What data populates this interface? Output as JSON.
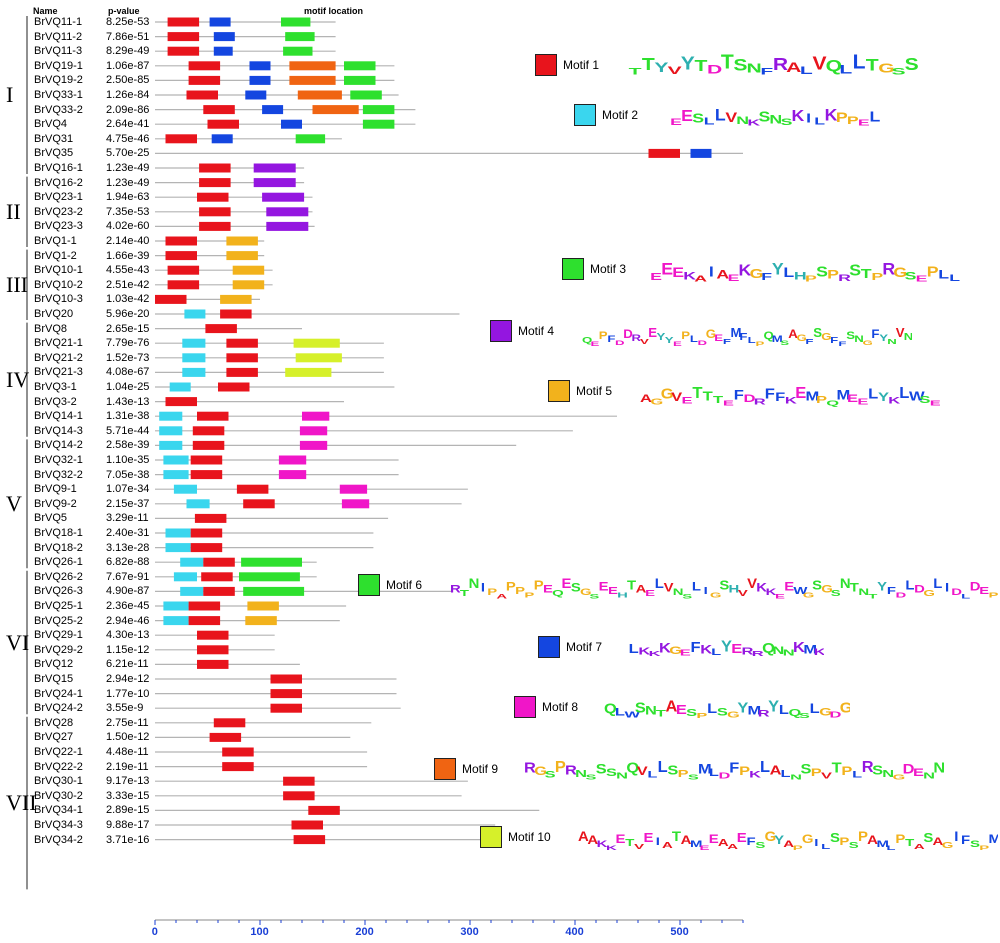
{
  "header": {
    "name": "Name",
    "pvalue": "p-value",
    "location": "motif location"
  },
  "axis": {
    "ticks": [
      0,
      100,
      200,
      300,
      400,
      500
    ],
    "max": 560
  },
  "colors": {
    "1": "#e8141c",
    "2": "#1446e0",
    "3": "#2ee02e",
    "4": "#9416e0",
    "5": "#f2b21c",
    "6": "#2ee02e",
    "7": "#1446e0",
    "8": "#f016c8",
    "9": "#f06412",
    "10": "#d6f02a",
    "c": "#3ad6ee"
  },
  "groups": [
    {
      "label": "I",
      "from": 0,
      "to": 10
    },
    {
      "label": "II",
      "from": 11,
      "to": 15
    },
    {
      "label": "III",
      "from": 16,
      "to": 20
    },
    {
      "label": "IV",
      "from": 21,
      "to": 28
    },
    {
      "label": "V",
      "from": 29,
      "to": 37
    },
    {
      "label": "VI",
      "from": 38,
      "to": 47
    },
    {
      "label": "VII",
      "from": 48,
      "to": 59
    }
  ],
  "genes": [
    {
      "name": "BrVQ11-1",
      "p": "8.25e-53",
      "len": 172,
      "m": [
        [
          1,
          12,
          42
        ],
        [
          2,
          52,
          72
        ],
        [
          6,
          120,
          148
        ]
      ]
    },
    {
      "name": "BrVQ11-2",
      "p": "7.86e-51",
      "len": 172,
      "m": [
        [
          1,
          12,
          42
        ],
        [
          2,
          56,
          76
        ],
        [
          6,
          124,
          152
        ]
      ]
    },
    {
      "name": "BrVQ11-3",
      "p": "8.29e-49",
      "len": 172,
      "m": [
        [
          1,
          12,
          42
        ],
        [
          2,
          56,
          74
        ],
        [
          6,
          122,
          150
        ]
      ]
    },
    {
      "name": "BrVQ19-1",
      "p": "1.06e-87",
      "len": 228,
      "m": [
        [
          1,
          32,
          62
        ],
        [
          2,
          90,
          110
        ],
        [
          9,
          128,
          172
        ],
        [
          6,
          180,
          210
        ]
      ]
    },
    {
      "name": "BrVQ19-2",
      "p": "2.50e-85",
      "len": 228,
      "m": [
        [
          1,
          32,
          62
        ],
        [
          2,
          90,
          110
        ],
        [
          9,
          128,
          172
        ],
        [
          6,
          180,
          210
        ]
      ]
    },
    {
      "name": "BrVQ33-1",
      "p": "1.26e-84",
      "len": 232,
      "m": [
        [
          1,
          30,
          60
        ],
        [
          2,
          86,
          106
        ],
        [
          9,
          136,
          178
        ],
        [
          6,
          186,
          216
        ]
      ]
    },
    {
      "name": "BrVQ33-2",
      "p": "2.09e-86",
      "len": 248,
      "m": [
        [
          1,
          46,
          76
        ],
        [
          2,
          102,
          122
        ],
        [
          9,
          150,
          194
        ],
        [
          6,
          198,
          228
        ]
      ]
    },
    {
      "name": "BrVQ4",
      "p": "2.64e-41",
      "len": 248,
      "m": [
        [
          1,
          50,
          80
        ],
        [
          2,
          120,
          140
        ],
        [
          6,
          198,
          228
        ]
      ]
    },
    {
      "name": "BrVQ31",
      "p": "4.75e-46",
      "len": 178,
      "m": [
        [
          1,
          10,
          40
        ],
        [
          2,
          54,
          74
        ],
        [
          6,
          134,
          162
        ]
      ]
    },
    {
      "name": "BrVQ35",
      "p": "5.70e-25",
      "len": 560,
      "m": [
        [
          1,
          470,
          500
        ],
        [
          2,
          510,
          530
        ]
      ]
    },
    {
      "name": "BrVQ16-1",
      "p": "1.23e-49",
      "len": 142,
      "m": [
        [
          1,
          42,
          72
        ],
        [
          4,
          94,
          134
        ]
      ]
    },
    {
      "name": "BrVQ16-2",
      "p": "1.23e-49",
      "len": 142,
      "m": [
        [
          1,
          42,
          72
        ],
        [
          4,
          94,
          134
        ]
      ]
    },
    {
      "name": "BrVQ23-1",
      "p": "1.94e-63",
      "len": 150,
      "m": [
        [
          1,
          40,
          70
        ],
        [
          4,
          102,
          142
        ]
      ]
    },
    {
      "name": "BrVQ23-2",
      "p": "7.35e-53",
      "len": 150,
      "m": [
        [
          1,
          42,
          72
        ],
        [
          4,
          106,
          146
        ]
      ]
    },
    {
      "name": "BrVQ23-3",
      "p": "4.02e-60",
      "len": 152,
      "m": [
        [
          1,
          42,
          72
        ],
        [
          4,
          106,
          146
        ]
      ]
    },
    {
      "name": "BrVQ1-1",
      "p": "2.14e-40",
      "len": 104,
      "m": [
        [
          1,
          10,
          40
        ],
        [
          5,
          68,
          98
        ]
      ]
    },
    {
      "name": "BrVQ1-2",
      "p": "1.66e-39",
      "len": 104,
      "m": [
        [
          1,
          10,
          40
        ],
        [
          5,
          68,
          98
        ]
      ]
    },
    {
      "name": "BrVQ10-1",
      "p": "4.55e-43",
      "len": 112,
      "m": [
        [
          1,
          12,
          42
        ],
        [
          5,
          74,
          104
        ]
      ]
    },
    {
      "name": "BrVQ10-2",
      "p": "2.51e-42",
      "len": 112,
      "m": [
        [
          1,
          12,
          42
        ],
        [
          5,
          74,
          104
        ]
      ]
    },
    {
      "name": "BrVQ10-3",
      "p": "1.03e-42",
      "len": 100,
      "m": [
        [
          1,
          0,
          30
        ],
        [
          5,
          62,
          92
        ]
      ]
    },
    {
      "name": "BrVQ20",
      "p": "5.96e-20",
      "len": 290,
      "m": [
        [
          "c",
          28,
          48
        ],
        [
          1,
          62,
          92
        ]
      ]
    },
    {
      "name": "BrVQ8",
      "p": "2.65e-15",
      "len": 140,
      "m": [
        [
          1,
          48,
          78
        ]
      ]
    },
    {
      "name": "BrVQ21-1",
      "p": "7.79e-76",
      "len": 218,
      "m": [
        [
          "c",
          26,
          48
        ],
        [
          1,
          68,
          98
        ],
        [
          10,
          132,
          176
        ]
      ]
    },
    {
      "name": "BrVQ21-2",
      "p": "1.52e-73",
      "len": 218,
      "m": [
        [
          "c",
          26,
          48
        ],
        [
          1,
          68,
          98
        ],
        [
          10,
          134,
          178
        ]
      ]
    },
    {
      "name": "BrVQ21-3",
      "p": "4.08e-67",
      "len": 218,
      "m": [
        [
          "c",
          26,
          48
        ],
        [
          1,
          68,
          98
        ],
        [
          10,
          124,
          168
        ]
      ]
    },
    {
      "name": "BrVQ3-1",
      "p": "1.04e-25",
      "len": 228,
      "m": [
        [
          "c",
          14,
          34
        ],
        [
          1,
          60,
          90
        ]
      ]
    },
    {
      "name": "BrVQ3-2",
      "p": "1.43e-13",
      "len": 180,
      "m": [
        [
          1,
          10,
          40
        ]
      ]
    },
    {
      "name": "BrVQ14-1",
      "p": "1.31e-38",
      "len": 440,
      "m": [
        [
          "c",
          4,
          26
        ],
        [
          1,
          40,
          70
        ],
        [
          8,
          140,
          166
        ]
      ]
    },
    {
      "name": "BrVQ14-3",
      "p": "5.71e-44",
      "len": 398,
      "m": [
        [
          "c",
          4,
          26
        ],
        [
          1,
          36,
          66
        ],
        [
          8,
          138,
          164
        ]
      ]
    },
    {
      "name": "BrVQ14-2",
      "p": "2.58e-39",
      "len": 344,
      "m": [
        [
          "c",
          4,
          26
        ],
        [
          1,
          36,
          66
        ],
        [
          8,
          138,
          164
        ]
      ]
    },
    {
      "name": "BrVQ32-1",
      "p": "1.10e-35",
      "len": 232,
      "m": [
        [
          "c",
          8,
          32
        ],
        [
          1,
          34,
          64
        ],
        [
          8,
          118,
          144
        ]
      ]
    },
    {
      "name": "BrVQ32-2",
      "p": "7.05e-38",
      "len": 232,
      "m": [
        [
          "c",
          8,
          32
        ],
        [
          1,
          34,
          64
        ],
        [
          8,
          118,
          144
        ]
      ]
    },
    {
      "name": "BrVQ9-1",
      "p": "1.07e-34",
      "len": 298,
      "m": [
        [
          "c",
          18,
          40
        ],
        [
          1,
          78,
          108
        ],
        [
          8,
          176,
          202
        ]
      ]
    },
    {
      "name": "BrVQ9-2",
      "p": "2.15e-37",
      "len": 292,
      "m": [
        [
          "c",
          30,
          52
        ],
        [
          1,
          84,
          114
        ],
        [
          8,
          178,
          204
        ]
      ]
    },
    {
      "name": "BrVQ5",
      "p": "3.29e-11",
      "len": 222,
      "m": [
        [
          1,
          38,
          68
        ]
      ]
    },
    {
      "name": "BrVQ18-1",
      "p": "2.40e-31",
      "len": 208,
      "m": [
        [
          "c",
          10,
          34
        ],
        [
          1,
          34,
          64
        ]
      ]
    },
    {
      "name": "BrVQ18-2",
      "p": "3.13e-28",
      "len": 208,
      "m": [
        [
          "c",
          10,
          34
        ],
        [
          1,
          34,
          64
        ]
      ]
    },
    {
      "name": "BrVQ26-1",
      "p": "6.82e-88",
      "len": 154,
      "m": [
        [
          "c",
          24,
          46
        ],
        [
          1,
          46,
          76
        ],
        [
          3,
          82,
          140
        ]
      ]
    },
    {
      "name": "BrVQ26-2",
      "p": "7.67e-91",
      "len": 154,
      "m": [
        [
          "c",
          18,
          40
        ],
        [
          1,
          44,
          74
        ],
        [
          3,
          80,
          138
        ]
      ]
    },
    {
      "name": "BrVQ26-3",
      "p": "4.90e-87",
      "len": 282,
      "m": [
        [
          "c",
          24,
          46
        ],
        [
          1,
          46,
          76
        ],
        [
          3,
          84,
          142
        ]
      ]
    },
    {
      "name": "BrVQ25-1",
      "p": "2.36e-45",
      "len": 182,
      "m": [
        [
          "c",
          8,
          32
        ],
        [
          1,
          32,
          62
        ],
        [
          5,
          88,
          118
        ]
      ]
    },
    {
      "name": "BrVQ25-2",
      "p": "2.94e-46",
      "len": 176,
      "m": [
        [
          "c",
          8,
          32
        ],
        [
          1,
          32,
          62
        ],
        [
          5,
          86,
          116
        ]
      ]
    },
    {
      "name": "BrVQ29-1",
      "p": "4.30e-13",
      "len": 114,
      "m": [
        [
          1,
          40,
          70
        ]
      ]
    },
    {
      "name": "BrVQ29-2",
      "p": "1.15e-12",
      "len": 114,
      "m": [
        [
          1,
          40,
          70
        ]
      ]
    },
    {
      "name": "BrVQ12",
      "p": "6.21e-11",
      "len": 138,
      "m": [
        [
          1,
          40,
          70
        ]
      ]
    },
    {
      "name": "BrVQ15",
      "p": "2.94e-12",
      "len": 230,
      "m": [
        [
          1,
          110,
          140
        ]
      ]
    },
    {
      "name": "BrVQ24-1",
      "p": "1.77e-10",
      "len": 230,
      "m": [
        [
          1,
          110,
          140
        ]
      ]
    },
    {
      "name": "BrVQ24-2",
      "p": "3.55e-9",
      "len": 234,
      "m": [
        [
          1,
          110,
          140
        ]
      ]
    },
    {
      "name": "BrVQ28",
      "p": "2.75e-11",
      "len": 206,
      "m": [
        [
          1,
          56,
          86
        ]
      ]
    },
    {
      "name": "BrVQ27",
      "p": "1.50e-12",
      "len": 186,
      "m": [
        [
          1,
          52,
          82
        ]
      ]
    },
    {
      "name": "BrVQ22-1",
      "p": "4.48e-11",
      "len": 202,
      "m": [
        [
          1,
          64,
          94
        ]
      ]
    },
    {
      "name": "BrVQ22-2",
      "p": "2.19e-11",
      "len": 202,
      "m": [
        [
          1,
          64,
          94
        ]
      ]
    },
    {
      "name": "BrVQ30-1",
      "p": "9.17e-13",
      "len": 298,
      "m": [
        [
          1,
          122,
          152
        ]
      ]
    },
    {
      "name": "BrVQ30-2",
      "p": "3.33e-15",
      "len": 292,
      "m": [
        [
          1,
          122,
          152
        ]
      ]
    },
    {
      "name": "BrVQ34-1",
      "p": "2.89e-15",
      "len": 366,
      "m": [
        [
          1,
          146,
          176
        ]
      ]
    },
    {
      "name": "BrVQ34-3",
      "p": "9.88e-17",
      "len": 324,
      "m": [
        [
          1,
          130,
          160
        ]
      ]
    },
    {
      "name": "BrVQ34-2",
      "p": "3.71e-16",
      "len": 320,
      "m": [
        [
          1,
          132,
          162
        ]
      ]
    }
  ],
  "motifs": [
    {
      "num": 1,
      "label": "Motif 1",
      "logo": "TTYVYTDTSNFRALVQLLTGSS"
    },
    {
      "num": 2,
      "label": "Motif 2",
      "logo": "EESLLVNKSNSKILKPPEL"
    },
    {
      "num": 3,
      "label": "Motif 3",
      "logo": "EEEKAIAEKGFYLHPSPRSTPRGSEPLL"
    },
    {
      "name_hint": "",
      "num": 4,
      "label": "Motif 4",
      "logo": "QEPFDDRVEYYEPLDGEFMFLPQMSAGFSGFFSNGFYNVN"
    },
    {
      "num": 5,
      "label": "Motif 5",
      "logo": "AGGVETTTEFDRFFKEMPQMEELYKLWSE"
    },
    {
      "num": 6,
      "label": "Motif 6",
      "logo": "RTNIPAPPPPEQESGSEEHTAELVNSLIGSHVVKKEEWGSGSNTNTYFDLDGLIDLDEP"
    },
    {
      "num": 7,
      "label": "Motif 7",
      "logo": "LKKKGEFKLYERRQNNKMK"
    },
    {
      "num": 8,
      "label": "Motif 8",
      "logo": "QLWSNTAESPLSGYMRYLQSLGDG"
    },
    {
      "num": 9,
      "label": "Motif 9",
      "logo": "RGSPRNSSSNQVLLSPSMLDFPKLALNSPVTPLRSNGDENN"
    },
    {
      "num": 10,
      "label": "Motif 10",
      "logo": "AAKKETVEIATAMEEAAEFSGYAPGILSPSPAMLPTASAGIFSPM"
    }
  ]
}
